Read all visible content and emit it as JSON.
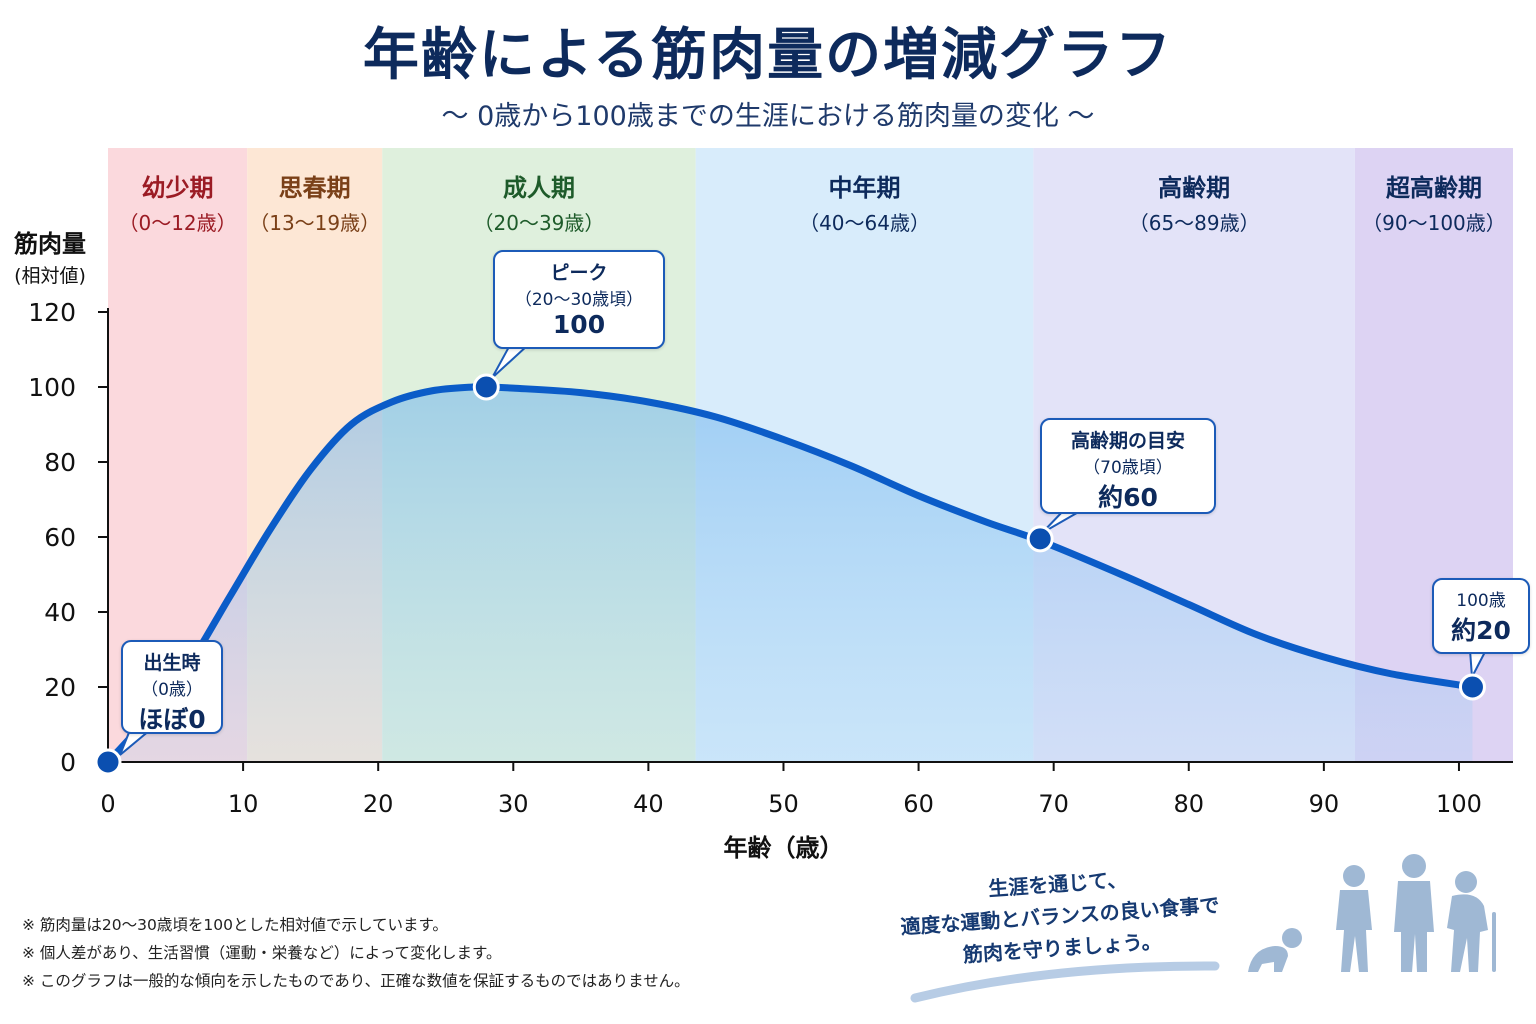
{
  "title": "年齢による筋肉量の増減グラフ",
  "subtitle": "～ 0歳から100歳までの生涯における筋肉量の変化 ～",
  "colors": {
    "line": "#0b5cc8",
    "point": "#0b4fb0",
    "fill": "#7fbdf0",
    "text": "#0d2a5c"
  },
  "chart_data": {
    "type": "area",
    "title": "年齢による筋肉量の増減グラフ",
    "xlabel": "年齢（歳）",
    "ylabel": "筋肉量",
    "ylabel_sub": "(相対値)",
    "xlim": [
      0,
      104
    ],
    "ylim": [
      0,
      120
    ],
    "x_ticks": [
      "0",
      "10",
      "20",
      "30",
      "40",
      "50",
      "60",
      "70",
      "80",
      "90",
      "100"
    ],
    "y_ticks": [
      "0",
      "20",
      "40",
      "60",
      "80",
      "100",
      "120"
    ],
    "grid": false,
    "series": [
      {
        "x": [
          0,
          3,
          6,
          9,
          12,
          15,
          18,
          21,
          24,
          27,
          28,
          30,
          35,
          40,
          45,
          50,
          55,
          60,
          65,
          69,
          75,
          80,
          85,
          90,
          95,
          101
        ],
        "values": [
          0,
          12,
          26,
          44,
          62,
          78,
          90,
          96,
          99,
          100,
          100,
          99.7,
          98.5,
          96,
          92,
          86,
          79,
          71,
          64,
          59,
          50,
          42,
          34,
          28,
          23.5,
          20
        ]
      }
    ],
    "periods": [
      {
        "name": "幼少期",
        "range": "（0～12歳）",
        "color": "#fbd9dd",
        "name_color": "#9b1b24"
      },
      {
        "name": "思春期",
        "range": "（13～19歳）",
        "color": "#fde7d5",
        "name_color": "#7a4018"
      },
      {
        "name": "成人期",
        "range": "（20～39歳）",
        "color": "#dff0dd",
        "name_color": "#1e5b2a"
      },
      {
        "name": "中年期",
        "range": "（40～64歳）",
        "color": "#d8ecfb",
        "name_color": "#0d2a5c"
      },
      {
        "name": "高齢期",
        "range": "（65～89歳）",
        "color": "#e3e3f8",
        "name_color": "#0d2a5c"
      },
      {
        "name": "超高齢期",
        "range": "（90～100歳）",
        "color": "#ddd3f3",
        "name_color": "#0d2a5c"
      }
    ],
    "period_bounds": [
      0,
      10.3,
      20.3,
      43.5,
      68.5,
      92.3,
      104
    ],
    "highlight_points": [
      {
        "x": 0,
        "y": 0,
        "label": "出生時",
        "sub": "（0歳）",
        "value": "ほぼ0"
      },
      {
        "x": 28,
        "y": 100,
        "label": "ピーク",
        "sub": "（20～30歳頃）",
        "value": "100"
      },
      {
        "x": 69,
        "y": 59.5,
        "label": "高齢期の目安",
        "sub": "（70歳頃）",
        "value": "約60"
      },
      {
        "x": 101,
        "y": 20,
        "label": "100歳",
        "sub": "",
        "value": "約20"
      }
    ]
  },
  "notes": [
    "※ 筋肉量は20～30歳頃を100とした相対値で示しています。",
    "※ 個人差があり、生活習慣（運動・栄養など）によって変化します。",
    "※ このグラフは一般的な傾向を示したものであり、正確な数値を保証するものではありません。"
  ],
  "message": [
    "生涯を通じて、",
    "適度な運動とバランスの良い食事で",
    "筋肉を守りましょう。"
  ],
  "illustration_icon": "human-life-stages-silhouette-icon"
}
